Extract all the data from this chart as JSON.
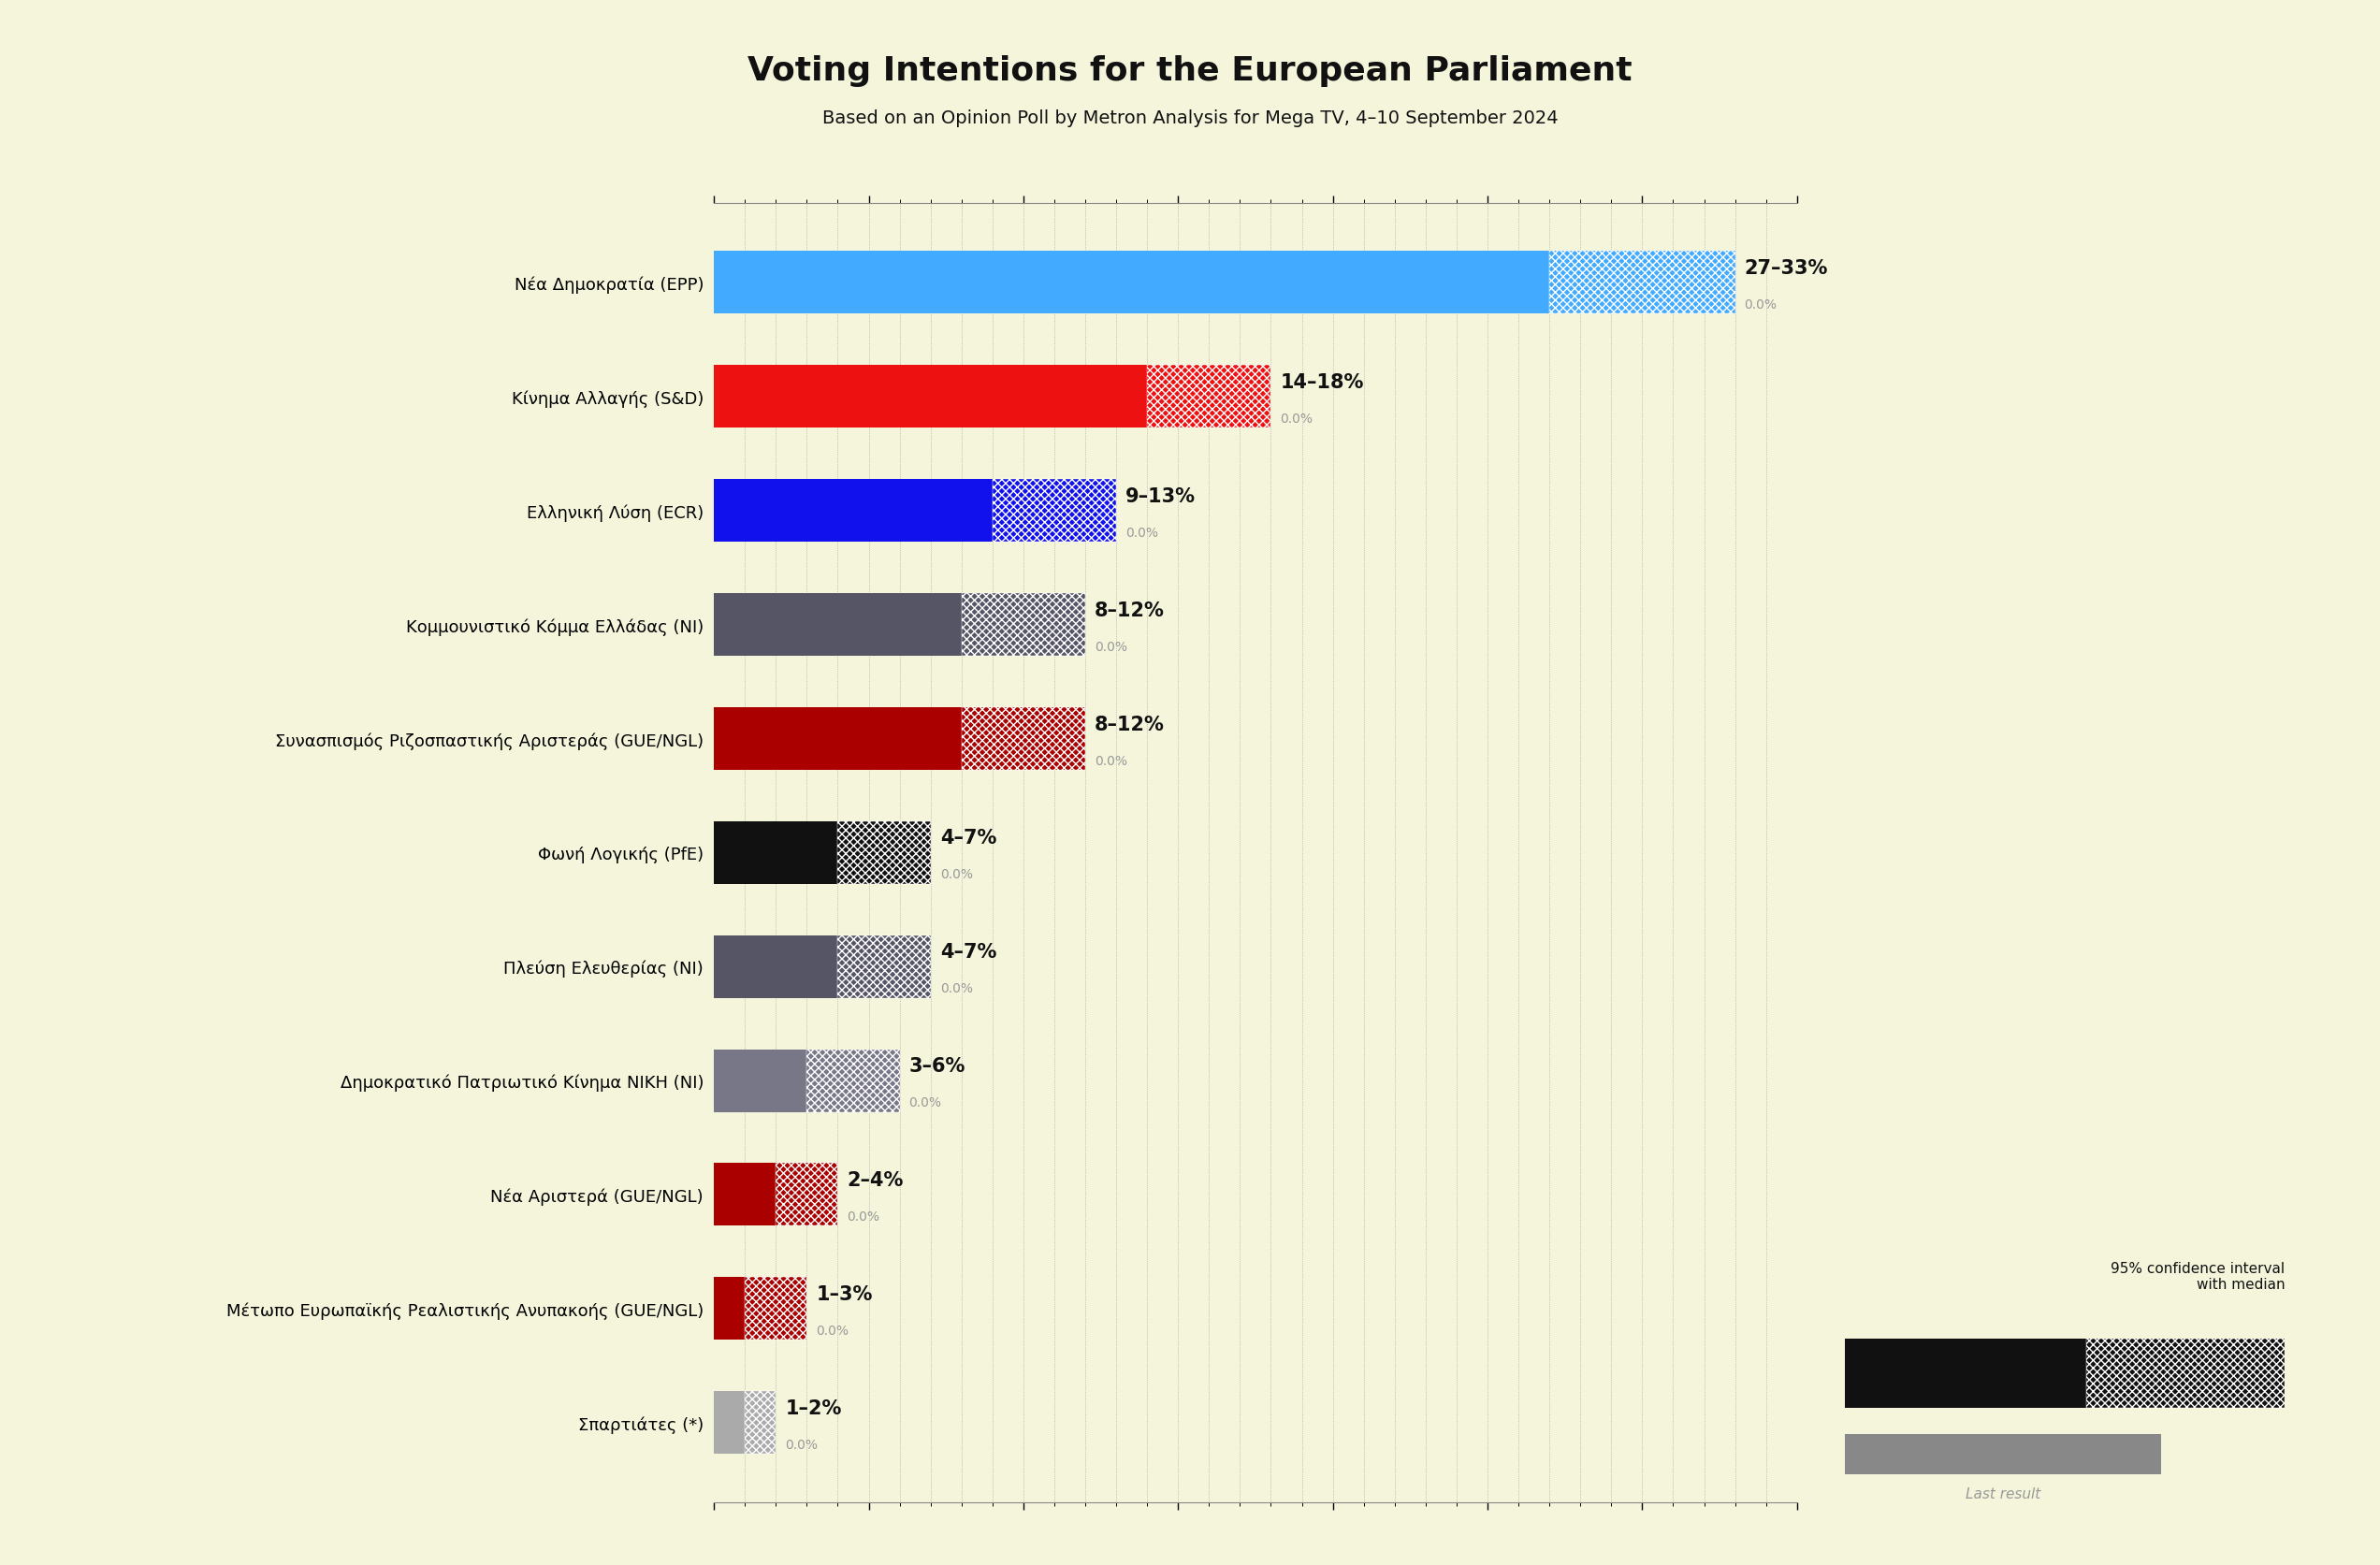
{
  "title": "Voting Intentions for the European Parliament",
  "subtitle": "Based on an Opinion Poll by Metron Analysis for Mega TV, 4–10 September 2024",
  "background_color": "#F5F5DC",
  "parties": [
    {
      "name": "Νέα Δημοκρατία (EPP)",
      "low": 27,
      "high": 33,
      "color": "#42AAFF",
      "last": 0.0
    },
    {
      "name": "Κίνημα Αλλαγής (S&D)",
      "low": 14,
      "high": 18,
      "color": "#EE1111",
      "last": 0.0
    },
    {
      "name": "Ελληνική Λύση (ECR)",
      "low": 9,
      "high": 13,
      "color": "#1111EE",
      "last": 0.0
    },
    {
      "name": "Κομμουνιστικό Κόμμα Ελλάδας (NI)",
      "low": 8,
      "high": 12,
      "color": "#555566",
      "last": 0.0
    },
    {
      "name": "Συνασπισμός Ριζοσπαστικής Αριστεράς (GUE/NGL)",
      "low": 8,
      "high": 12,
      "color": "#AA0000",
      "last": 0.0
    },
    {
      "name": "Φωνή Λογικής (PfE)",
      "low": 4,
      "high": 7,
      "color": "#111111",
      "last": 0.0
    },
    {
      "name": "Πλεύση Ελευθερίας (NI)",
      "low": 4,
      "high": 7,
      "color": "#555566",
      "last": 0.0
    },
    {
      "name": "Δημοκρατικό Πατριωτικό Κίνημα ΝΙΚΗ (NI)",
      "low": 3,
      "high": 6,
      "color": "#777788",
      "last": 0.0
    },
    {
      "name": "Νέα Αριστερά (GUE/NGL)",
      "low": 2,
      "high": 4,
      "color": "#AA0000",
      "last": 0.0
    },
    {
      "name": "Μέτωπο Ευρωπαϊκής Ρεαλιστικής Ανυπακοής (GUE/NGL)",
      "low": 1,
      "high": 3,
      "color": "#AA0000",
      "last": 0.0
    },
    {
      "name": "Σπαρτιάτες (*)",
      "low": 1,
      "high": 2,
      "color": "#AAAAAA",
      "last": 0.0
    }
  ],
  "xlim_max": 35,
  "bar_height": 0.55,
  "title_fontsize": 26,
  "subtitle_fontsize": 14,
  "label_fontsize": 13,
  "party_fontsize": 13,
  "range_fontsize": 15,
  "last_fontsize": 10
}
